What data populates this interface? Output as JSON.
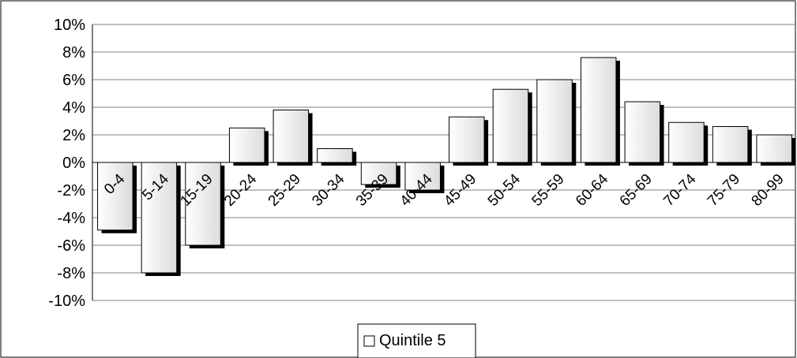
{
  "chart_data": {
    "type": "bar",
    "title": "",
    "xlabel": "",
    "ylabel": "",
    "categories": [
      "0-4",
      "5-14",
      "15-19",
      "20-24",
      "25-29",
      "30-34",
      "35-39",
      "40-44",
      "45-49",
      "50-54",
      "55-59",
      "60-64",
      "65-69",
      "70-74",
      "75-79",
      "80-99"
    ],
    "series": [
      {
        "name": "Quintile 5",
        "values": [
          -4.9,
          -8.0,
          -6.0,
          2.5,
          3.8,
          1.0,
          -1.6,
          -2.0,
          3.3,
          5.3,
          6.0,
          7.6,
          4.4,
          2.9,
          2.6,
          2.0
        ]
      }
    ],
    "ylim": [
      -10,
      10
    ],
    "y_ticks": [
      "10%",
      "8%",
      "6%",
      "4%",
      "2%",
      "0%",
      "-2%",
      "-4%",
      "-6%",
      "-8%",
      "-10%"
    ],
    "y_tick_values": [
      10,
      8,
      6,
      4,
      2,
      0,
      -2,
      -4,
      -6,
      -8,
      -10
    ],
    "grid": true,
    "legend_position": "bottom",
    "colors": {
      "bar_fill": "#f2f2f2",
      "bar_stroke": "#000000",
      "shadow": "#000000",
      "grid": "#808080"
    }
  }
}
